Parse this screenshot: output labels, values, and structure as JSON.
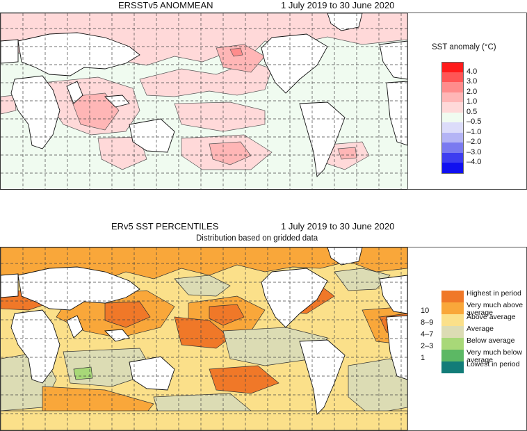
{
  "panel1": {
    "title": "ERSSTv5 ANOMMEAN",
    "period": "1 July 2019 to 30 June 2020",
    "legend": {
      "title": "SST anomaly (°C)",
      "labels": [
        "4.0",
        "3.0",
        "2.0",
        "1.0",
        "0.5",
        "–0.5",
        "–1.0",
        "–2.0",
        "–3.0",
        "–4.0"
      ],
      "colors": [
        "#ff1a1a",
        "#ff5555",
        "#ff8c8c",
        "#ffb6b6",
        "#ffd9d9",
        "#f0fbf0",
        "#dcdcfa",
        "#b4b4f5",
        "#7a7af0",
        "#3d3df0",
        "#1010f0"
      ]
    }
  },
  "panel2": {
    "title": "ERv5 SST PERCENTILES",
    "period": "1 July 2019 to 30 June 2020",
    "subtitle": "Distribution based on gridded data",
    "legend": {
      "categories": [
        {
          "label": "Highest in period",
          "color": "#f07828"
        },
        {
          "label": "Very much above average",
          "color": "#f9a73a"
        },
        {
          "label": "Above average",
          "color": "#fbe08a"
        },
        {
          "label": "Average",
          "color": "#dcdcb4"
        },
        {
          "label": "Below average",
          "color": "#a8d878"
        },
        {
          "label": "Very much below average",
          "color": "#5cb864"
        },
        {
          "label": "Lowest in period",
          "color": "#127c78"
        }
      ],
      "ranks": [
        "10",
        "8–9",
        "4–7",
        "2–3",
        "1"
      ]
    }
  }
}
